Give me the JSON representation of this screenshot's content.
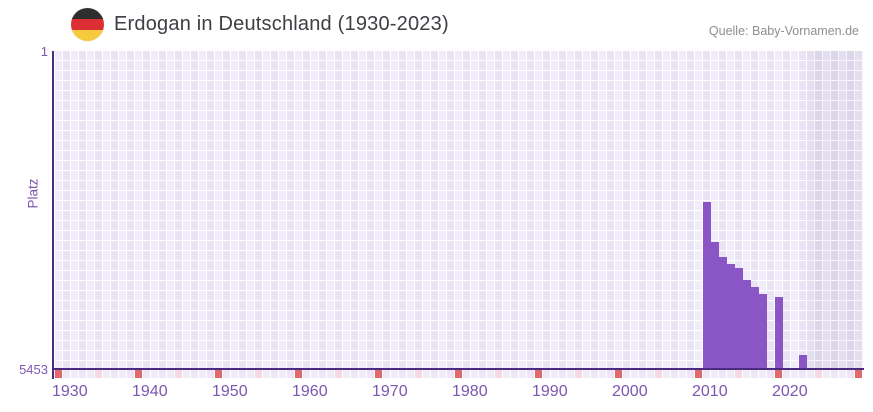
{
  "header": {
    "title": "Erdogan in Deutschland (1930-2023)",
    "source": "Quelle: Baby-Vornamen.de",
    "flag_icon": "german-flag-circle"
  },
  "chart_data": {
    "type": "bar",
    "title": "Erdogan in Deutschland (1930-2023)",
    "source": "Quelle: Baby-Vornamen.de",
    "xlabel": "",
    "ylabel": "Platz",
    "y_axis": {
      "top_label": "1",
      "bottom_label": "5453",
      "min": 1,
      "max": 5453,
      "inverted": true,
      "scale": "linear"
    },
    "x_axis": {
      "start_year": 1930,
      "end_year": 2030,
      "data_range_label": "1930-2023",
      "tick_labels": [
        "1930",
        "1940",
        "1950",
        "1960",
        "1970",
        "1980",
        "1990",
        "2000",
        "2010",
        "2020"
      ],
      "decade_mark_years": [
        1930,
        1940,
        1950,
        1960,
        1970,
        1980,
        1990,
        2000,
        2010,
        2020,
        2030
      ],
      "half_decade_mark_years": [
        1935,
        1945,
        1955,
        1965,
        1975,
        1985,
        1995,
        2005,
        2015,
        2025
      ],
      "future_region_start_year": 2024
    },
    "series": [
      {
        "name": "Platz",
        "points": [
          {
            "year": 2011,
            "rank": 2595
          },
          {
            "year": 2012,
            "rank": 3270
          },
          {
            "year": 2013,
            "rank": 3530
          },
          {
            "year": 2014,
            "rank": 3655
          },
          {
            "year": 2015,
            "rank": 3720
          },
          {
            "year": 2016,
            "rank": 3925
          },
          {
            "year": 2017,
            "rank": 4045
          },
          {
            "year": 2018,
            "rank": 4170
          },
          {
            "year": 2020,
            "rank": 4215
          },
          {
            "year": 2023,
            "rank": 5215
          }
        ]
      }
    ],
    "legend": "none",
    "grid": "on",
    "colors": {
      "bar": "#8a56c5",
      "axis_line": "#4b2b7f",
      "axis_labels": "#7d56b2",
      "decade_tick": "#e0696e",
      "half_decade_tick": "#f5d9df",
      "grid_cell_light": "#f1ecf9",
      "grid_cell_alt": "#e9e3f4",
      "future_region_cell": "#dbd6e8",
      "title_text": "#3e3e44",
      "source_text": "#8e8e95",
      "flag_black": "#2e2e2e",
      "flag_red": "#dc2f34",
      "flag_gold": "#f7c93c"
    }
  }
}
